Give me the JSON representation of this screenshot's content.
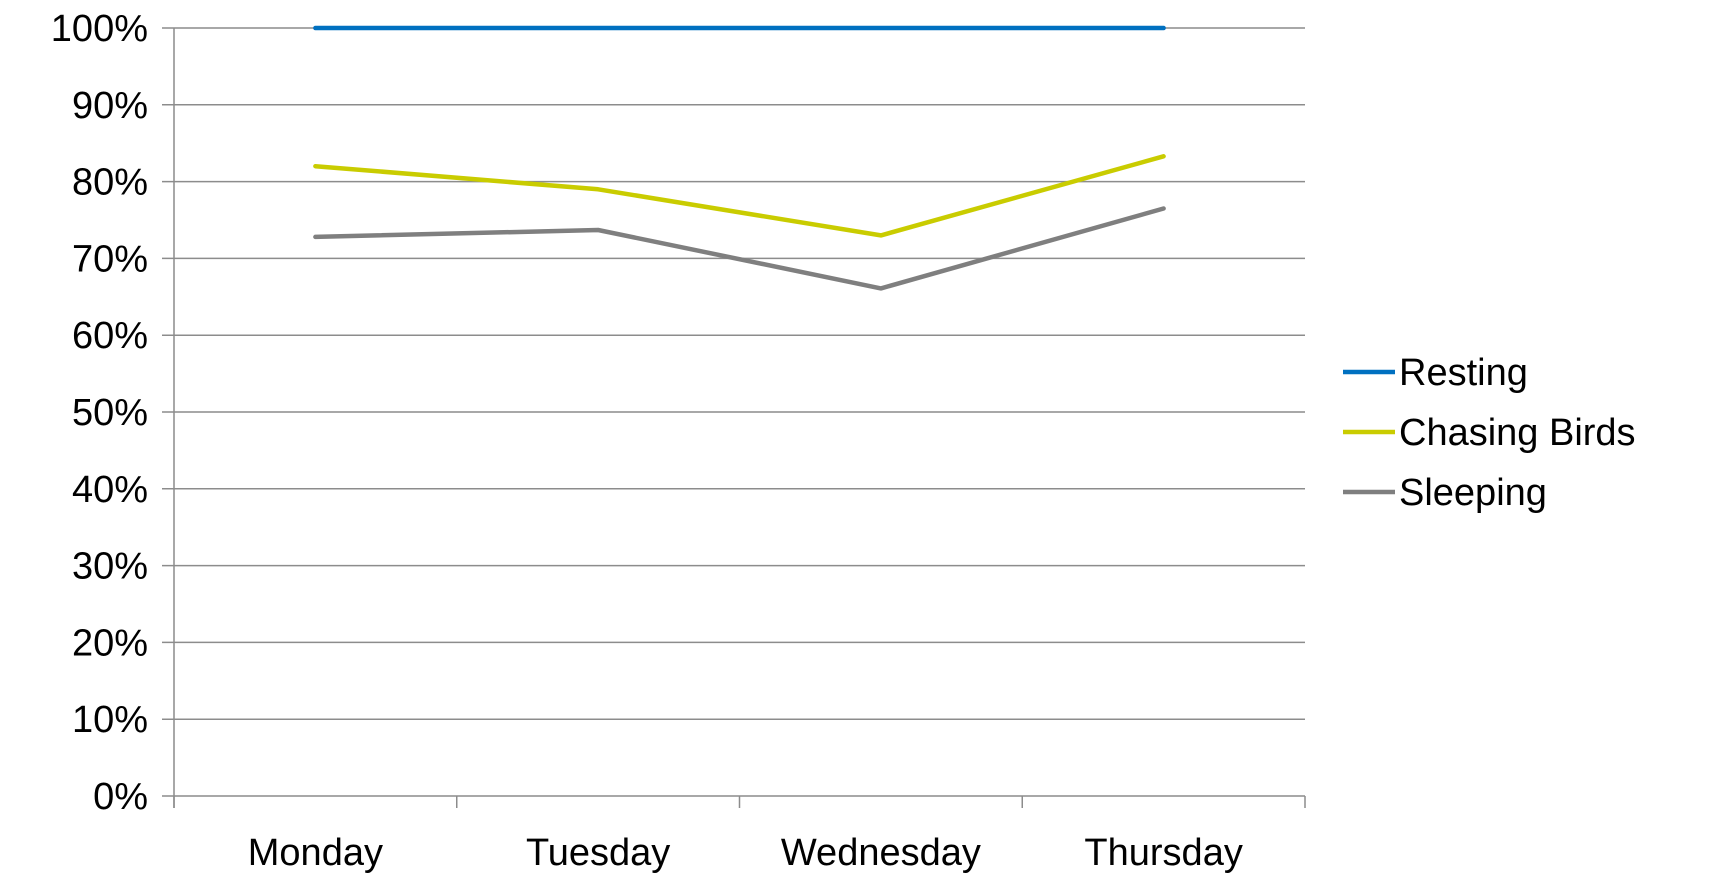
{
  "chart_data": {
    "type": "line",
    "categories": [
      "Monday",
      "Tuesday",
      "Wednesday",
      "Thursday"
    ],
    "series": [
      {
        "name": "Resting",
        "values": [
          100,
          100,
          100,
          100
        ],
        "color": "#0070C0"
      },
      {
        "name": "Chasing Birds",
        "values": [
          82,
          79,
          73,
          83.3
        ],
        "color": "#C9CC00"
      },
      {
        "name": "Sleeping",
        "values": [
          72.8,
          73.7,
          66.1,
          76.5
        ],
        "color": "#7F7F7F"
      }
    ],
    "yticks": [
      "0%",
      "10%",
      "20%",
      "30%",
      "40%",
      "50%",
      "60%",
      "70%",
      "80%",
      "90%",
      "100%"
    ],
    "ylim": [
      0,
      100
    ],
    "grid": true,
    "legend_position": "right",
    "gridline_color": "#8C8C8C",
    "axis_color": "#8C8C8C"
  }
}
